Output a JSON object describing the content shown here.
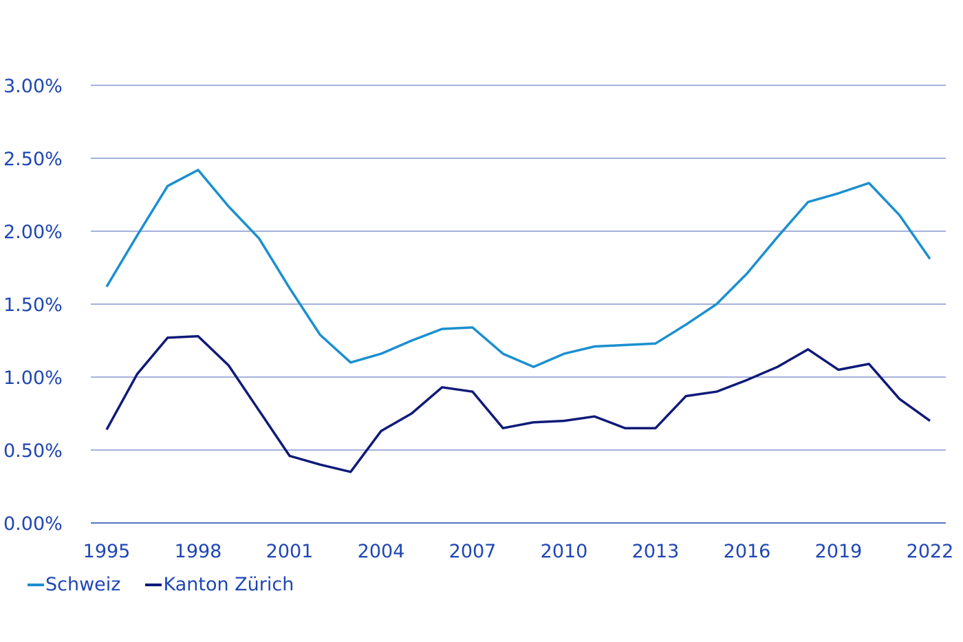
{
  "chart_data": {
    "type": "line",
    "title": "",
    "xlabel": "",
    "ylabel": "",
    "x": [
      1995,
      1996,
      1997,
      1998,
      1999,
      2000,
      2001,
      2002,
      2003,
      2004,
      2005,
      2006,
      2007,
      2008,
      2009,
      2010,
      2011,
      2012,
      2013,
      2014,
      2015,
      2016,
      2017,
      2018,
      2019,
      2020,
      2021,
      2022
    ],
    "x_ticks": [
      "1995",
      "1998",
      "2001",
      "2004",
      "2007",
      "2010",
      "2013",
      "2016",
      "2019",
      "2022"
    ],
    "y_ticks": [
      "0.00%",
      "0.50%",
      "1.00%",
      "1.50%",
      "2.00%",
      "2.50%",
      "3.00%"
    ],
    "ylim": [
      0,
      3.0
    ],
    "grid": "horizontal",
    "legend_position": "bottom-left",
    "series": [
      {
        "name": "Schweiz",
        "color": "#1a8fd0",
        "values": [
          1.62,
          1.97,
          2.31,
          2.42,
          2.17,
          1.95,
          1.61,
          1.29,
          1.1,
          1.16,
          1.25,
          1.33,
          1.34,
          1.16,
          1.07,
          1.16,
          1.21,
          1.22,
          1.23,
          1.36,
          1.5,
          1.71,
          1.96,
          2.2,
          2.26,
          2.33,
          2.11,
          1.81
        ]
      },
      {
        "name": "Kanton Zürich",
        "color": "#0f1a78",
        "values": [
          0.64,
          1.02,
          1.27,
          1.28,
          1.08,
          0.77,
          0.46,
          0.4,
          0.35,
          0.63,
          0.75,
          0.93,
          0.9,
          0.65,
          0.69,
          0.7,
          0.73,
          0.65,
          0.65,
          0.87,
          0.9,
          0.98,
          1.07,
          1.19,
          1.05,
          1.09,
          0.85,
          0.7
        ]
      }
    ]
  }
}
